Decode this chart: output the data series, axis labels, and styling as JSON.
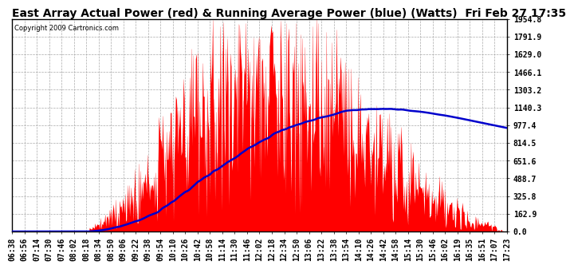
{
  "title": "East Array Actual Power (red) & Running Average Power (blue) (Watts)  Fri Feb 27 17:35",
  "copyright": "Copyright 2009 Cartronics.com",
  "ylabel_values": [
    0.0,
    162.9,
    325.8,
    488.7,
    651.6,
    814.5,
    977.4,
    1140.3,
    1303.2,
    1466.1,
    1629.0,
    1791.9,
    1954.8
  ],
  "ymax": 1954.8,
  "ymin": 0.0,
  "background_color": "#ffffff",
  "plot_bg_color": "#ffffff",
  "grid_color": "#aaaaaa",
  "bar_color": "#ff0000",
  "avg_color": "#0000cc",
  "title_fontsize": 10,
  "tick_fontsize": 7,
  "x_tick_labels": [
    "06:38",
    "06:56",
    "07:14",
    "07:30",
    "07:46",
    "08:02",
    "08:18",
    "08:34",
    "08:50",
    "09:06",
    "09:22",
    "09:38",
    "09:54",
    "10:10",
    "10:26",
    "10:42",
    "10:58",
    "11:14",
    "11:30",
    "11:46",
    "12:02",
    "12:18",
    "12:34",
    "12:50",
    "13:06",
    "13:22",
    "13:38",
    "13:54",
    "14:10",
    "14:26",
    "14:42",
    "14:58",
    "15:14",
    "15:30",
    "15:46",
    "16:02",
    "16:19",
    "16:35",
    "16:51",
    "17:07",
    "17:23"
  ]
}
